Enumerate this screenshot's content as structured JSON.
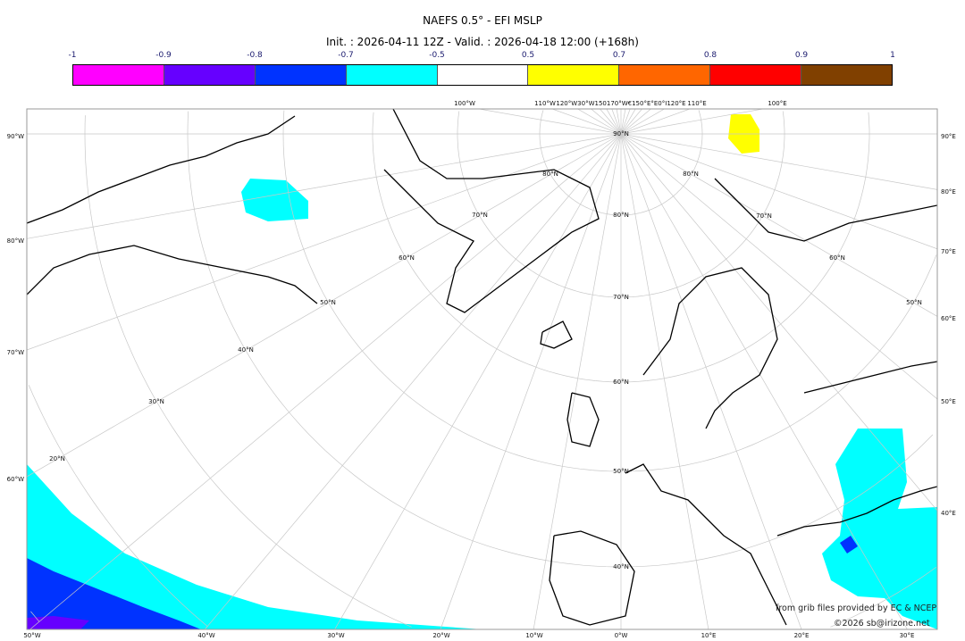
{
  "header": {
    "title": "NAEFS 0.5° - EFI MSLP",
    "subtitle": "Init. : 2026-04-11 12Z - Valid. : 2026-04-18 12:00 (+168h)"
  },
  "colorbar": {
    "ticks": [
      "-1",
      "-0.9",
      "-0.8",
      "-0.7",
      "-0.5",
      "0.5",
      "0.7",
      "0.8",
      "0.9",
      "1"
    ],
    "colors": [
      "#ff00ff",
      "#6600ff",
      "#0033ff",
      "#00ffff",
      "#ffffff",
      "#ffff00",
      "#ff6600",
      "#ff0000",
      "#804000"
    ]
  },
  "map": {
    "bottom_labels": [
      "50°W",
      "40°W",
      "30°W",
      "20°W",
      "10°W",
      "0°W",
      "10°E",
      "20°E",
      "30°E"
    ],
    "left_labels": [
      "90°W",
      "80°W",
      "70°W",
      "60°W"
    ],
    "right_labels": [
      "90°E",
      "80°E",
      "70°E",
      "60°E",
      "50°E",
      "40°E"
    ],
    "top_labels": [
      "100°W",
      "110°W",
      "120°W30°W150170°W€150°E°E0°I120°E",
      "110°E",
      "100°E"
    ],
    "lat_labels": [
      "20°N",
      "30°N",
      "40°N",
      "50°N",
      "60°N",
      "70°N",
      "80°N",
      "90°N"
    ],
    "lat_labels_0": [
      "80°N",
      "70°N",
      "60°N",
      "50°N",
      "40°N"
    ],
    "lat_labels_east": [
      "80°N",
      "70°N",
      "60°N",
      "50°N"
    ]
  },
  "credits": {
    "source": "from grib files provided by EC & NCEP",
    "copyright": "©2026 sb@irizone.net"
  }
}
